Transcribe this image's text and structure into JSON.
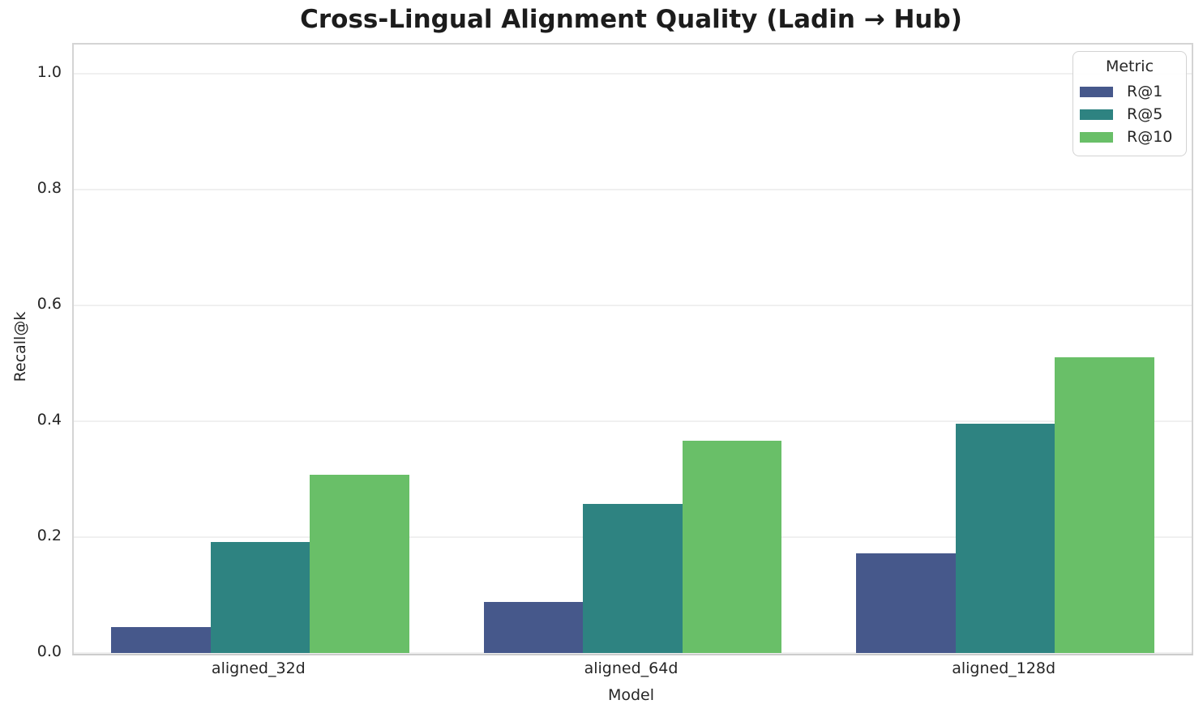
{
  "chart_data": {
    "type": "bar",
    "title": "Cross-Lingual Alignment Quality (Ladin → Hub)",
    "xlabel": "Model",
    "ylabel": "Recall@k",
    "categories": [
      "aligned_32d",
      "aligned_64d",
      "aligned_128d"
    ],
    "series": [
      {
        "name": "R@1",
        "color": "#46588b",
        "values": [
          0.045,
          0.088,
          0.172
        ]
      },
      {
        "name": "R@5",
        "color": "#2e8381",
        "values": [
          0.192,
          0.257,
          0.396
        ]
      },
      {
        "name": "R@10",
        "color": "#69bf68",
        "values": [
          0.308,
          0.366,
          0.51
        ]
      }
    ],
    "ylim": [
      0,
      1.05
    ],
    "yticks": [
      0.0,
      0.2,
      0.4,
      0.6,
      0.8,
      1.0
    ],
    "ytick_labels": [
      "0.0",
      "0.2",
      "0.4",
      "0.6",
      "0.8",
      "1.0"
    ],
    "legend": {
      "title": "Metric",
      "position": "upper right"
    },
    "grid": "horizontal",
    "group_gap_fraction": 0.8
  },
  "style": {
    "background": "#ffffff",
    "grid_color": "#f0f0f0",
    "spine_color": "#d4d4d4",
    "text_color": "#262626",
    "title_color": "#1c1c1c"
  }
}
